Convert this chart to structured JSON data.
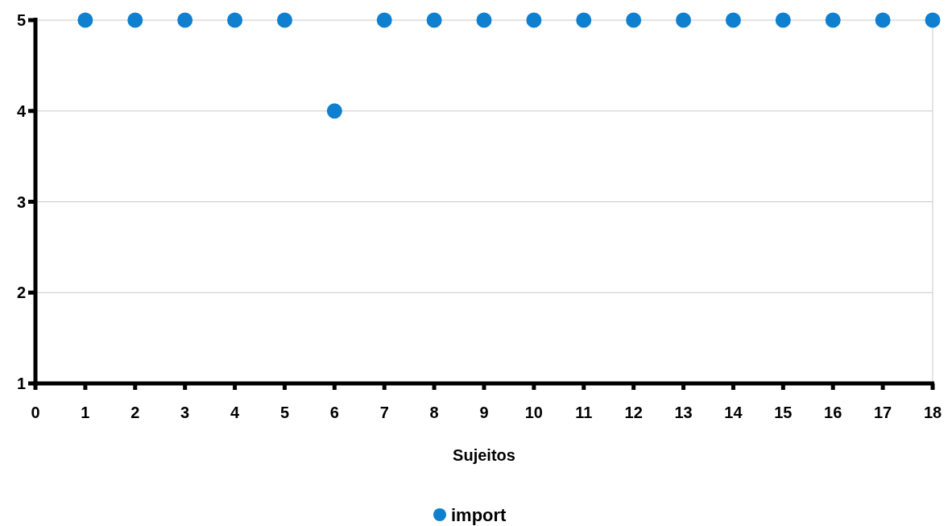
{
  "chart_data": {
    "type": "scatter",
    "xlabel": "Sujeitos",
    "x": [
      1,
      2,
      3,
      4,
      5,
      6,
      7,
      8,
      9,
      10,
      11,
      12,
      13,
      14,
      15,
      16,
      17,
      18
    ],
    "series": [
      {
        "name": "import",
        "color": "#0f7fd0",
        "values": [
          5,
          5,
          5,
          5,
          5,
          4,
          5,
          5,
          5,
          5,
          5,
          5,
          5,
          5,
          5,
          5,
          5,
          5
        ]
      }
    ],
    "xlim": [
      0,
      18
    ],
    "xticks": [
      0,
      1,
      2,
      3,
      4,
      5,
      6,
      7,
      8,
      9,
      10,
      11,
      12,
      13,
      14,
      15,
      16,
      17,
      18
    ],
    "ylim": [
      1,
      5
    ],
    "yticks": [
      1,
      2,
      3,
      4,
      5
    ],
    "grid": "y",
    "legend": "bottom",
    "marker": "circle"
  }
}
